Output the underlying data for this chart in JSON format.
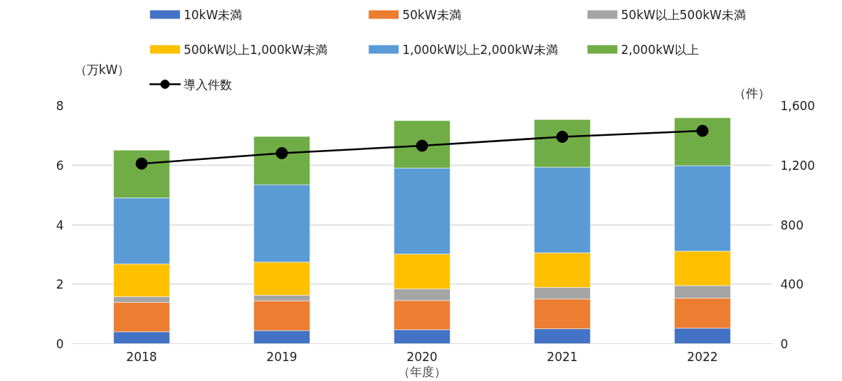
{
  "chart_data": {
    "type": "bar",
    "stacked": true,
    "categories": [
      "2018",
      "2019",
      "2020",
      "2021",
      "2022"
    ],
    "ylabel": "（万kW）",
    "y2label": "（件）",
    "xlabel": "（年度）",
    "ylim": [
      0,
      8
    ],
    "yticks": [
      0,
      2,
      4,
      6,
      8
    ],
    "y2lim": [
      0,
      1600
    ],
    "y2ticks": [
      0,
      {
        "value": 400,
        "label": "400"
      },
      {
        "value": 800,
        "label": "800"
      },
      {
        "value": 1200,
        "label": "1,200"
      },
      {
        "value": 1600,
        "label": "1,600"
      }
    ],
    "grid": "y",
    "legend": "top",
    "marker": "circle",
    "line_style": "solid",
    "series": [
      {
        "name": "10kW未満",
        "color": "#4472c4",
        "values": [
          0.4,
          0.44,
          0.47,
          0.5,
          0.52
        ]
      },
      {
        "name": "50kW未満",
        "color": "#ed7d31",
        "values": [
          0.99,
          1.0,
          0.98,
          1.0,
          1.01
        ]
      },
      {
        "name": "50kW以上500kW未満",
        "color": "#a5a5a5",
        "values": [
          0.19,
          0.19,
          0.39,
          0.39,
          0.42
        ]
      },
      {
        "name": "500kW以上1,000kW未満",
        "color": "#ffc000",
        "values": [
          1.1,
          1.11,
          1.17,
          1.16,
          1.16
        ]
      },
      {
        "name": "1,000kW以上2,000kW未満",
        "color": "#5b9bd5",
        "values": [
          2.22,
          2.6,
          2.89,
          2.88,
          2.87
        ]
      },
      {
        "name": "2,000kW以上",
        "color": "#70ad47",
        "values": [
          1.6,
          1.62,
          1.59,
          1.6,
          1.61
        ]
      },
      {
        "name": "導入件数",
        "color": "#000000",
        "type": "line",
        "axis": "y2",
        "values": [
          1210,
          1280,
          1330,
          1390,
          1430
        ]
      }
    ]
  }
}
